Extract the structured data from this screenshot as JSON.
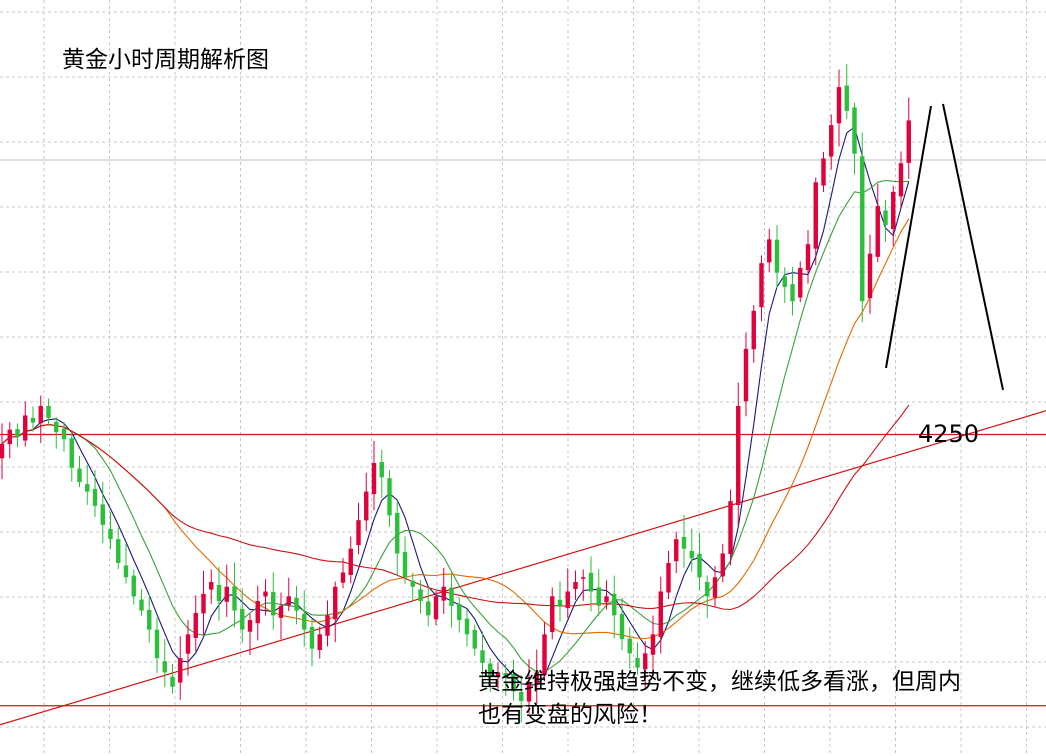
{
  "title": "黄金小时周期解析图",
  "price_label": "4250",
  "note": {
    "line1": "黄金维持极强趋势不变，继续低多看涨，但周内",
    "line2": "也有变盘的风险！"
  },
  "colors": {
    "up_candle": "#e0003a",
    "down_candle": "#2bbf3a",
    "grid": "#c8c8c8",
    "level_line": "#d01414",
    "trend_line": "#d01414",
    "ma_fast": "#1a1a7a",
    "ma_green": "#3aa03a",
    "ma_orange": "#e06a00",
    "ma_slow": "#c81414",
    "projection": "#000000"
  },
  "chart_data": {
    "type": "candlestick",
    "symbol": "黄金",
    "timeframe": "1H",
    "price_range": [
      4130,
      4420
    ],
    "grid": true,
    "closes": [
      4246,
      4252,
      4249,
      4258,
      4255,
      4262,
      4257,
      4251,
      4248,
      4236,
      4230,
      4226,
      4220,
      4212,
      4206,
      4196,
      4190,
      4182,
      4176,
      4168,
      4156,
      4150,
      4144,
      4156,
      4166,
      4175,
      4183,
      4188,
      4180,
      4186,
      4176,
      4168,
      4172,
      4180,
      4184,
      4174,
      4178,
      4182,
      4176,
      4168,
      4160,
      4166,
      4174,
      4186,
      4192,
      4202,
      4214,
      4226,
      4238,
      4232,
      4216,
      4200,
      4190,
      4186,
      4180,
      4174,
      4182,
      4186,
      4178,
      4172,
      4166,
      4160,
      4154,
      4148,
      4150,
      4148,
      4142,
      4138,
      4146,
      4150,
      4166,
      4182,
      4178,
      4184,
      4188,
      4190,
      4184,
      4178,
      4182,
      4174,
      4164,
      4158,
      4152,
      4158,
      4166,
      4184,
      4196,
      4206,
      4202,
      4198,
      4190,
      4182,
      4190,
      4200,
      4222,
      4262,
      4286,
      4302,
      4322,
      4332,
      4318,
      4312,
      4306,
      4320,
      4330,
      4356,
      4366,
      4380,
      4396,
      4386,
      4368,
      4306,
      4326,
      4346,
      4338,
      4352,
      4364,
      4382
    ],
    "moving_averages": [
      "fast",
      "medium",
      "slow",
      "long"
    ],
    "levels": [
      4250,
      4136
    ],
    "trend_line": "rising support",
    "projection": "up then down toward 4250"
  }
}
